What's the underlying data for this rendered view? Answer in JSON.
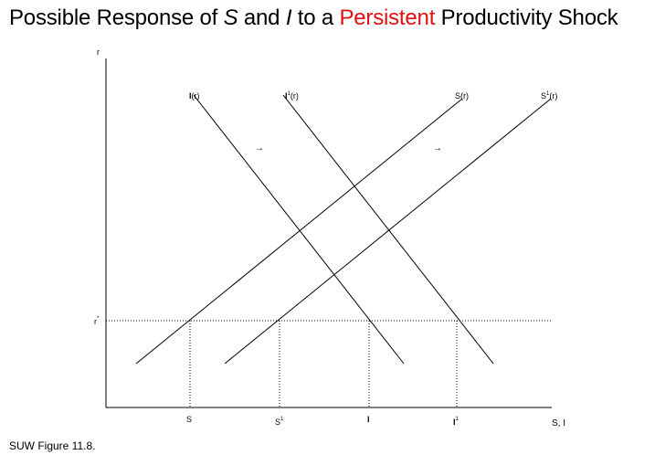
{
  "title": {
    "prefix": "Possible Response of ",
    "s_symbol": "S",
    "and_text": " and ",
    "i_symbol": "I",
    "to_a_text": " to a ",
    "highlight": "Persistent",
    "suffix": " Productivity Shock",
    "highlight_color": "#e01010"
  },
  "footer": {
    "source": "SUW Figure 11.8."
  },
  "axes": {
    "y_label": "r",
    "x_label": "S, I",
    "rstar_base": "r",
    "rstar_sup": "*"
  },
  "curves": {
    "I": {
      "base": "I",
      "sup": "",
      "arg": "(r)"
    },
    "I1": {
      "base": "I",
      "sup": "1",
      "arg": "(r)"
    },
    "S": {
      "base": "S",
      "sup": "",
      "arg": "(r)"
    },
    "S1": {
      "base": "S",
      "sup": "1",
      "arg": "(r)"
    }
  },
  "x_ticks": {
    "S": {
      "base": "S",
      "sup": ""
    },
    "S1": {
      "base": "S",
      "sup": "1"
    },
    "I": {
      "base": "I",
      "sup": ""
    },
    "I1": {
      "base": "I",
      "sup": "1"
    }
  },
  "shift_arrows": [
    "→",
    "→"
  ]
}
